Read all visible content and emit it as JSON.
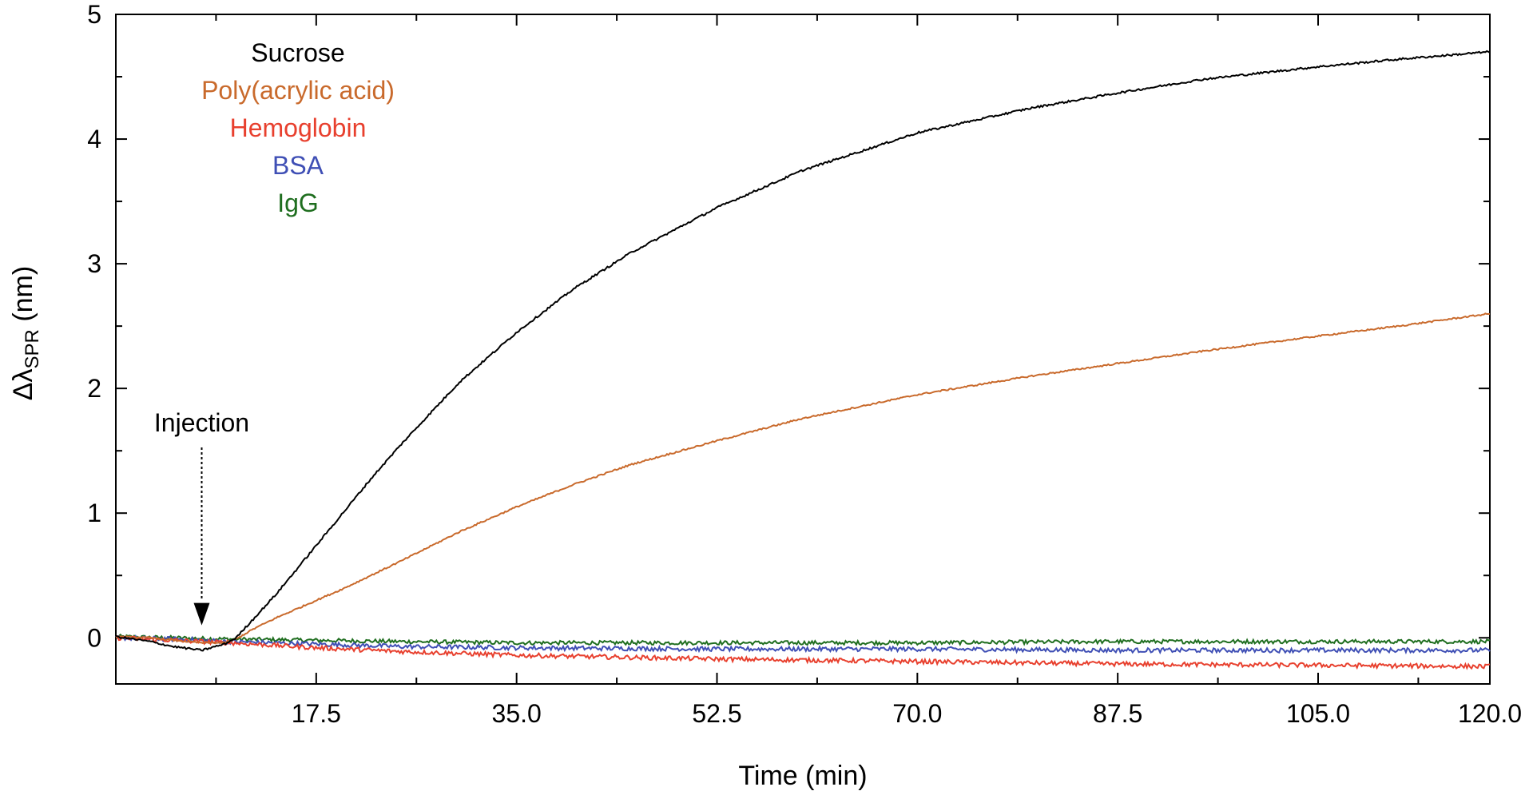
{
  "chart_data": {
    "type": "line",
    "xlabel": "Time (min)",
    "ylabel_main": "Δλ",
    "ylabel_sub": "SPR",
    "ylabel_unit": " (nm)",
    "xlim": [
      0,
      120
    ],
    "ylim": [
      -0.37,
      5
    ],
    "x_ticks": [
      17.5,
      35.0,
      52.5,
      70.0,
      87.5,
      105.0,
      120.0
    ],
    "x_tick_labels": [
      "17.5",
      "35.0",
      "52.5",
      "70.0",
      "87.5",
      "105.0",
      "120.0"
    ],
    "y_ticks": [
      0,
      1,
      2,
      3,
      4,
      5
    ],
    "y_tick_labels": [
      "0",
      "1",
      "2",
      "3",
      "4",
      "5"
    ],
    "legend_placement": "top-left",
    "annotation": {
      "label": "Injection",
      "x": 7.5,
      "y": 0.1
    },
    "series": [
      {
        "name": "Sucrose",
        "color": "#000000",
        "x": [
          0,
          3,
          5,
          7.5,
          9.5,
          10.5,
          12,
          14,
          17.5,
          20,
          22.5,
          25,
          30,
          35,
          40,
          45,
          52.5,
          60,
          70,
          80,
          87.5,
          95,
          105,
          112,
          120
        ],
        "y": [
          0.01,
          -0.03,
          -0.07,
          -0.1,
          -0.05,
          0.0,
          0.15,
          0.35,
          0.74,
          1.02,
          1.3,
          1.56,
          2.05,
          2.45,
          2.8,
          3.09,
          3.45,
          3.75,
          4.05,
          4.25,
          4.37,
          4.48,
          4.58,
          4.64,
          4.7
        ]
      },
      {
        "name": "Poly(acrylic acid)",
        "color": "#c96a2c",
        "x": [
          0,
          3,
          5,
          7.5,
          9.5,
          10.5,
          12,
          14,
          17.5,
          20,
          25,
          30,
          35,
          40,
          45,
          52.5,
          60,
          70,
          80,
          87.5,
          95,
          105,
          112,
          120
        ],
        "y": [
          0.01,
          0.0,
          -0.02,
          -0.04,
          -0.04,
          -0.01,
          0.07,
          0.16,
          0.3,
          0.4,
          0.62,
          0.85,
          1.05,
          1.23,
          1.39,
          1.58,
          1.76,
          1.95,
          2.1,
          2.2,
          2.3,
          2.42,
          2.5,
          2.6
        ]
      },
      {
        "name": "Hemoglobin",
        "color": "#e8402e",
        "x": [
          0,
          5,
          10,
          17.5,
          25,
          35,
          52.5,
          70,
          87.5,
          105,
          120
        ],
        "y": [
          0.0,
          -0.02,
          -0.04,
          -0.08,
          -0.11,
          -0.14,
          -0.17,
          -0.19,
          -0.21,
          -0.22,
          -0.23
        ]
      },
      {
        "name": "BSA",
        "color": "#3f4fb5",
        "x": [
          0,
          5,
          10,
          17.5,
          25,
          35,
          52.5,
          70,
          87.5,
          105,
          120
        ],
        "y": [
          0.0,
          -0.01,
          -0.03,
          -0.05,
          -0.07,
          -0.08,
          -0.09,
          -0.09,
          -0.1,
          -0.1,
          -0.1
        ]
      },
      {
        "name": "IgG",
        "color": "#1f6e1f",
        "x": [
          0,
          5,
          10,
          17.5,
          25,
          35,
          52.5,
          70,
          87.5,
          105,
          120
        ],
        "y": [
          0.01,
          0.0,
          -0.01,
          -0.02,
          -0.03,
          -0.04,
          -0.04,
          -0.04,
          -0.03,
          -0.03,
          -0.03
        ]
      }
    ]
  }
}
